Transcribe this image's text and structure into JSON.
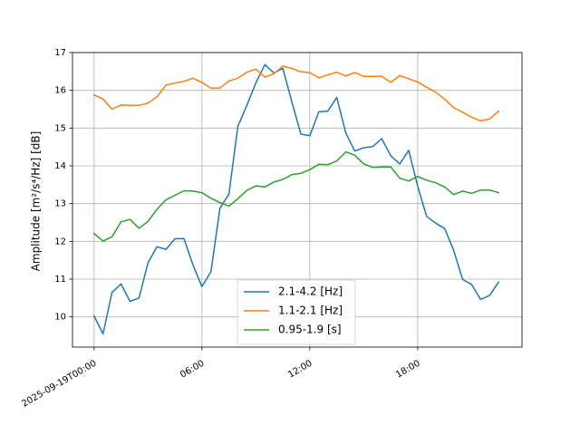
{
  "chart_data": {
    "type": "line",
    "title": "",
    "xlabel": "",
    "ylabel": "Amplitude [m²/s⁴/Hz] [dB]",
    "x_range_hours": [
      -1.2,
      23.8
    ],
    "ylim": [
      9.2,
      17.0
    ],
    "y_ticks": [
      10,
      11,
      12,
      13,
      14,
      15,
      16,
      17
    ],
    "x_ticks": [
      {
        "hour": 0,
        "label": "2025-09-19T00:00"
      },
      {
        "hour": 6,
        "label": "06:00"
      },
      {
        "hour": 12,
        "label": "12:00"
      },
      {
        "hour": 18,
        "label": "18:00"
      }
    ],
    "grid": true,
    "legend_position": "lower center",
    "series": [
      {
        "name": "2.1-4.2 [Hz]",
        "color": "#1f77b4",
        "x": [
          0,
          0.5,
          1,
          1.5,
          2,
          2.5,
          3,
          3.5,
          4,
          4.5,
          5,
          5.5,
          6,
          6.5,
          7,
          7.5,
          8,
          8.5,
          9,
          9.5,
          10,
          10.5,
          11,
          11.5,
          12,
          12.5,
          13,
          13.5,
          14,
          14.5,
          15,
          15.5,
          16,
          16.5,
          17,
          17.5,
          18,
          18.5,
          19,
          19.5,
          20,
          20.5,
          21,
          21.5,
          22,
          22.5,
          23
        ],
        "values": [
          10.02,
          9.55,
          10.65,
          10.87,
          10.41,
          10.5,
          11.43,
          11.86,
          11.79,
          12.07,
          12.07,
          11.38,
          10.8,
          11.2,
          12.88,
          13.25,
          15.05,
          15.6,
          16.2,
          16.68,
          16.46,
          16.58,
          15.7,
          14.84,
          14.8,
          15.43,
          15.45,
          15.81,
          14.87,
          14.39,
          14.48,
          14.51,
          14.72,
          14.27,
          14.05,
          14.41,
          13.46,
          12.66,
          12.48,
          12.34,
          11.76,
          10.99,
          10.86,
          10.46,
          10.57,
          10.92,
          null
        ]
      },
      {
        "name": "1.1-2.1 [Hz]",
        "color": "#ff7f0e",
        "x": [
          0,
          0.5,
          1,
          1.5,
          2,
          2.5,
          3,
          3.5,
          4,
          4.5,
          5,
          5.5,
          6,
          6.5,
          7,
          7.5,
          8,
          8.5,
          9,
          9.5,
          10,
          10.5,
          11,
          11.5,
          12,
          12.5,
          13,
          13.5,
          14,
          14.5,
          15,
          15.5,
          16,
          16.5,
          17,
          17.5,
          18,
          18.5,
          19,
          19.5,
          20,
          20.5,
          21,
          21.5,
          22,
          22.5,
          23
        ],
        "values": [
          15.88,
          15.77,
          15.5,
          15.61,
          15.6,
          15.6,
          15.66,
          15.83,
          16.14,
          16.19,
          16.24,
          16.32,
          16.21,
          16.06,
          16.06,
          16.25,
          16.32,
          16.48,
          16.56,
          16.35,
          16.44,
          16.64,
          16.58,
          16.49,
          16.47,
          16.33,
          16.41,
          16.48,
          16.38,
          16.47,
          16.37,
          16.37,
          16.37,
          16.21,
          16.39,
          16.31,
          16.22,
          16.08,
          15.95,
          15.77,
          15.54,
          15.42,
          15.29,
          15.19,
          15.24,
          15.45,
          null
        ]
      },
      {
        "name": "0.95-1.9 [s]",
        "color": "#2ca02c",
        "x": [
          0,
          0.5,
          1,
          1.5,
          2,
          2.5,
          3,
          3.5,
          4,
          4.5,
          5,
          5.5,
          6,
          6.5,
          7,
          7.5,
          8,
          8.5,
          9,
          9.5,
          10,
          10.5,
          11,
          11.5,
          12,
          12.5,
          13,
          13.5,
          14,
          14.5,
          15,
          15.5,
          16,
          16.5,
          17,
          17.5,
          18,
          18.5,
          19,
          19.5,
          20,
          20.5,
          21,
          21.5,
          22,
          22.5,
          23
        ],
        "values": [
          12.21,
          12.01,
          12.12,
          12.52,
          12.58,
          12.35,
          12.53,
          12.85,
          13.1,
          13.22,
          13.34,
          13.33,
          13.29,
          13.14,
          13.03,
          12.93,
          13.13,
          13.35,
          13.47,
          13.44,
          13.57,
          13.64,
          13.77,
          13.8,
          13.9,
          14.04,
          14.03,
          14.13,
          14.37,
          14.28,
          14.05,
          13.96,
          13.97,
          13.97,
          13.67,
          13.6,
          13.72,
          13.62,
          13.55,
          13.44,
          13.24,
          13.33,
          13.27,
          13.36,
          13.36,
          13.29,
          null
        ]
      }
    ]
  }
}
